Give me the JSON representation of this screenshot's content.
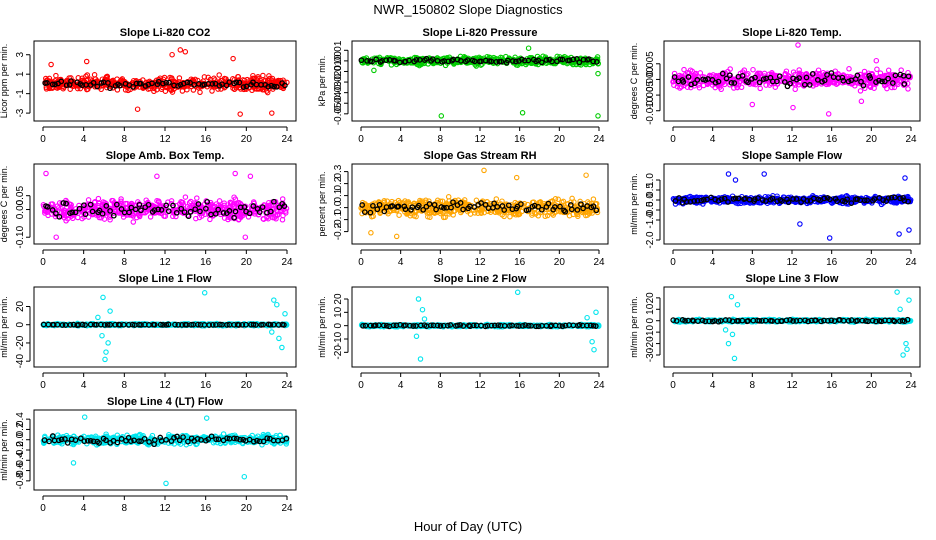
{
  "title": "NWR_150802  Slope Diagnostics",
  "xlabel": "Hour of Day (UTC)",
  "colors": {
    "co2": "#ff0000",
    "pressure": "#00cc00",
    "temp": "#ff00ff",
    "rh": "#ffa500",
    "sample": "#0000ff",
    "line": "#00e5ee",
    "overlay": "#000000"
  },
  "chart_data": [
    {
      "type": "scatter",
      "title": "Slope Li-820 CO2",
      "ylabel": "Licor ppm per min.",
      "color": "#ff0000",
      "xlim": [
        0,
        24
      ],
      "xticks": [
        "0",
        "4",
        "8",
        "12",
        "16",
        "20",
        "24"
      ],
      "ylim": [
        -3.4,
        4.0
      ],
      "yticks": [
        {
          "v": -3,
          "t": "-3"
        },
        {
          "v": -1,
          "t": "-1"
        },
        {
          "v": 1,
          "t": "1"
        },
        {
          "v": 3,
          "t": "3"
        }
      ],
      "spread": 1.0,
      "overlay_spread": 0.5,
      "outliers": [
        [
          13.5,
          3.5
        ],
        [
          14.0,
          3.3
        ],
        [
          4.3,
          2.3
        ],
        [
          0.8,
          2.0
        ],
        [
          12.7,
          3.0
        ],
        [
          19.4,
          -3.1
        ],
        [
          22.5,
          -3.0
        ],
        [
          9.3,
          -2.6
        ],
        [
          18.7,
          2.6
        ]
      ]
    },
    {
      "type": "scatter",
      "title": "Slope Li-820 Pressure",
      "ylabel": "kPa per min.",
      "color": "#00cc00",
      "xlim": [
        0,
        24
      ],
      "xticks": [
        "0",
        "4",
        "8",
        "12",
        "16",
        "20",
        "24"
      ],
      "ylim": [
        -0.053,
        0.015
      ],
      "yticks": [
        {
          "v": -0.05,
          "t": "-0.05"
        },
        {
          "v": -0.04,
          "t": "-0.04"
        },
        {
          "v": -0.03,
          "t": "-0.03"
        },
        {
          "v": -0.02,
          "t": "-0.02"
        },
        {
          "v": -0.01,
          "t": "-0.01"
        },
        {
          "v": 0,
          "t": "0.00"
        },
        {
          "v": 0.01,
          "t": "0.01"
        }
      ],
      "spread": 0.005,
      "overlay_spread": 0.003,
      "outliers": [
        [
          8.1,
          -0.052
        ],
        [
          16.3,
          -0.049
        ],
        [
          23.9,
          -0.052
        ],
        [
          16.9,
          0.012
        ],
        [
          14.6,
          0.004
        ],
        [
          23.9,
          -0.012
        ],
        [
          1.3,
          -0.009
        ]
      ]
    },
    {
      "type": "scatter",
      "title": "Slope Li-820 Temp.",
      "ylabel": "degrees C per min.",
      "color": "#ff00ff",
      "xlim": [
        0,
        24
      ],
      "xticks": [
        "0",
        "4",
        "8",
        "12",
        "16",
        "20",
        "24"
      ],
      "ylim": [
        -0.012,
        0.011
      ],
      "yticks": [
        {
          "v": -0.01,
          "t": "-0.010"
        },
        {
          "v": -0.005,
          "t": "-0.005"
        },
        {
          "v": 0,
          "t": "0.000"
        },
        {
          "v": 0.005,
          "t": "0.005"
        }
      ],
      "spread": 0.004,
      "overlay_spread": 0.003,
      "outliers": [
        [
          12.6,
          0.011
        ],
        [
          15.7,
          -0.011
        ],
        [
          12.1,
          -0.009
        ],
        [
          19.0,
          -0.007
        ],
        [
          8.0,
          -0.008
        ],
        [
          20.5,
          0.006
        ]
      ]
    },
    {
      "type": "scatter",
      "title": "Slope Amb. Box Temp.",
      "ylabel": "degrees C per min.",
      "color": "#ff00ff",
      "xlim": [
        0,
        24
      ],
      "xticks": [
        "0",
        "4",
        "8",
        "12",
        "16",
        "20",
        "24"
      ],
      "ylim": [
        -0.11,
        0.15
      ],
      "yticks": [
        {
          "v": -0.1,
          "t": "-0.10"
        },
        {
          "v": 0,
          "t": "0.00"
        },
        {
          "v": 0.05,
          "t": "0.05"
        }
      ],
      "spread": 0.05,
      "overlay_spread": 0.04,
      "outliers": [
        [
          18.9,
          0.13
        ],
        [
          11.2,
          0.12
        ],
        [
          0.3,
          0.13
        ],
        [
          20.4,
          0.12
        ],
        [
          1.3,
          -0.1
        ],
        [
          19.9,
          -0.1
        ]
      ]
    },
    {
      "type": "scatter",
      "title": "Slope Gas Stream RH",
      "ylabel": "percent per min.",
      "color": "#ffa500",
      "xlim": [
        0,
        24
      ],
      "xticks": [
        "0",
        "4",
        "8",
        "12",
        "16",
        "20",
        "24"
      ],
      "ylim": [
        -0.27,
        0.33
      ],
      "yticks": [
        {
          "v": -0.2,
          "t": "-0.2"
        },
        {
          "v": -0.1,
          "t": "-0.1"
        },
        {
          "v": 0,
          "t": "0.0"
        },
        {
          "v": 0.1,
          "t": "0.1"
        },
        {
          "v": 0.2,
          "t": "0.2"
        },
        {
          "v": 0.3,
          "t": "0.3"
        }
      ],
      "spread": 0.1,
      "overlay_spread": 0.06,
      "outliers": [
        [
          12.4,
          0.31
        ],
        [
          3.6,
          -0.24
        ],
        [
          22.7,
          0.27
        ],
        [
          1.0,
          -0.21
        ],
        [
          15.7,
          0.25
        ]
      ]
    },
    {
      "type": "scatter",
      "title": "Slope Sample Flow",
      "ylabel": "ml/min per min.",
      "color": "#0000ff",
      "xlim": [
        0,
        24
      ],
      "xticks": [
        "0",
        "4",
        "8",
        "12",
        "16",
        "20",
        "24"
      ],
      "ylim": [
        -2.0,
        1.6
      ],
      "yticks": [
        {
          "v": -2,
          "t": "-2.0"
        },
        {
          "v": -1,
          "t": "-1.0"
        },
        {
          "v": -0.5,
          "t": "-0.5"
        },
        {
          "v": 0,
          "t": "0.0"
        },
        {
          "v": 0.5,
          "t": "0.5"
        },
        {
          "v": 1,
          "t": "1.0"
        }
      ],
      "spread": 0.25,
      "overlay_spread": 0.2,
      "outliers": [
        [
          15.8,
          -1.9
        ],
        [
          22.8,
          -1.7
        ],
        [
          6.3,
          1.0
        ],
        [
          9.2,
          1.3
        ],
        [
          23.8,
          -1.5
        ],
        [
          5.6,
          1.3
        ],
        [
          23.4,
          1.1
        ],
        [
          12.8,
          -1.2
        ]
      ]
    },
    {
      "type": "scatter",
      "title": "Slope Line 1 Flow",
      "ylabel": "ml/min per min.",
      "color": "#00e5ee",
      "xlim": [
        0,
        24
      ],
      "xticks": [
        "0",
        "4",
        "8",
        "12",
        "16",
        "20",
        "24"
      ],
      "ylim": [
        -42,
        37
      ],
      "yticks": [
        {
          "v": -40,
          "t": "-40"
        },
        {
          "v": -20,
          "t": "-20"
        },
        {
          "v": 0,
          "t": "0"
        },
        {
          "v": 20,
          "t": "20"
        }
      ],
      "spread": 1.5,
      "overlay_spread": 0.5,
      "burst": [
        [
          5.9,
          30
        ],
        [
          6.2,
          -30
        ],
        [
          5.8,
          -12
        ],
        [
          6.6,
          15
        ],
        [
          6.1,
          -38
        ],
        [
          15.9,
          35
        ],
        [
          22.7,
          27
        ],
        [
          23.2,
          -15
        ],
        [
          23.5,
          -25
        ],
        [
          23.8,
          12
        ],
        [
          22.5,
          -8
        ],
        [
          23.0,
          22
        ],
        [
          6.4,
          -20
        ],
        [
          5.4,
          8
        ]
      ],
      "outliers": []
    },
    {
      "type": "scatter",
      "title": "Slope Line 2 Flow",
      "ylabel": "ml/min per min.",
      "color": "#00e5ee",
      "xlim": [
        0,
        24
      ],
      "xticks": [
        "0",
        "4",
        "8",
        "12",
        "16",
        "20",
        "24"
      ],
      "ylim": [
        -28,
        26
      ],
      "yticks": [
        {
          "v": -20,
          "t": "-20"
        },
        {
          "v": -10,
          "t": "-10"
        },
        {
          "v": 0,
          "t": "0"
        },
        {
          "v": 10,
          "t": "10"
        },
        {
          "v": 20,
          "t": "20"
        }
      ],
      "spread": 1.2,
      "overlay_spread": 0.8,
      "burst": [
        [
          5.8,
          20
        ],
        [
          6.0,
          -25
        ],
        [
          6.2,
          12
        ],
        [
          5.6,
          -8
        ],
        [
          15.8,
          25
        ],
        [
          23.3,
          -12
        ],
        [
          23.7,
          10
        ],
        [
          22.8,
          6
        ],
        [
          23.5,
          -18
        ],
        [
          6.4,
          5
        ]
      ],
      "outliers": []
    },
    {
      "type": "scatter",
      "title": "Slope Line 3 Flow",
      "ylabel": "ml/min per min.",
      "color": "#00e5ee",
      "xlim": [
        0,
        24
      ],
      "xticks": [
        "0",
        "4",
        "8",
        "12",
        "16",
        "20",
        "24"
      ],
      "ylim": [
        -37,
        26
      ],
      "yticks": [
        {
          "v": -30,
          "t": "-30"
        },
        {
          "v": -20,
          "t": "-20"
        },
        {
          "v": -10,
          "t": "-10"
        },
        {
          "v": 0,
          "t": "0"
        },
        {
          "v": 10,
          "t": "10"
        },
        {
          "v": 20,
          "t": "20"
        }
      ],
      "spread": 1.5,
      "overlay_spread": 1.0,
      "burst": [
        [
          5.9,
          21
        ],
        [
          6.2,
          -33
        ],
        [
          5.6,
          -20
        ],
        [
          6.5,
          14
        ],
        [
          5.3,
          -8
        ],
        [
          22.6,
          25
        ],
        [
          23.2,
          -30
        ],
        [
          23.5,
          -20
        ],
        [
          23.8,
          18
        ],
        [
          22.9,
          10
        ],
        [
          23.6,
          -25
        ],
        [
          6.0,
          -12
        ]
      ],
      "outliers": []
    },
    {
      "type": "scatter",
      "title": "Slope Line 4 (LT) Flow",
      "ylabel": "ml/min per min.",
      "color": "#00e5ee",
      "xlim": [
        0,
        24
      ],
      "xticks": [
        "0",
        "4",
        "8",
        "12",
        "16",
        "20",
        "24"
      ],
      "ylim": [
        -0.9,
        0.5
      ],
      "yticks": [
        {
          "v": -0.8,
          "t": "-0.8"
        },
        {
          "v": -0.6,
          "t": "-0.6"
        },
        {
          "v": -0.4,
          "t": "-0.4"
        },
        {
          "v": -0.2,
          "t": "-0.2"
        },
        {
          "v": 0,
          "t": "0.0"
        },
        {
          "v": 0.2,
          "t": "0.2"
        },
        {
          "v": 0.4,
          "t": "0.4"
        }
      ],
      "spread": 0.12,
      "overlay_spread": 0.1,
      "outliers": [
        [
          12.1,
          -0.85
        ],
        [
          19.8,
          -0.72
        ],
        [
          4.1,
          0.44
        ],
        [
          16.1,
          0.42
        ],
        [
          3.0,
          -0.45
        ]
      ]
    }
  ]
}
